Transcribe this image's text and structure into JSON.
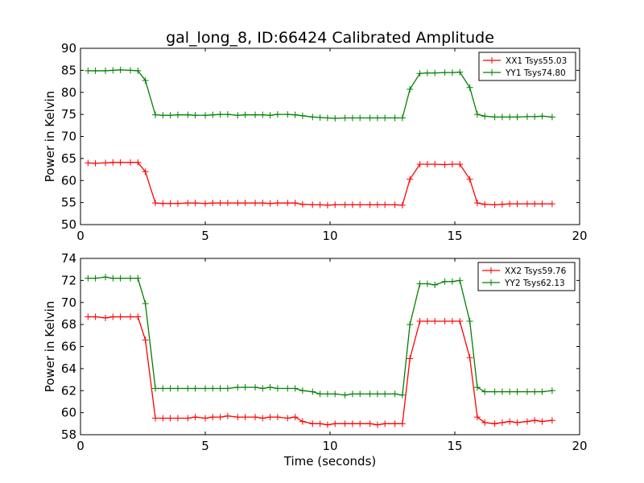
{
  "figure_title": "gal_long_8, ID:66424 Calibrated Amplitude",
  "chart_data": [
    {
      "type": "line",
      "title": "gal_long_8, ID:66424 Calibrated Amplitude",
      "xlabel": "",
      "ylabel": "Power in Kelvin",
      "xlim": [
        0,
        20
      ],
      "ylim": [
        50,
        90
      ],
      "xticks": [
        0,
        5,
        10,
        15,
        20
      ],
      "yticks": [
        50,
        55,
        60,
        65,
        70,
        75,
        80,
        85,
        90
      ],
      "grid": false,
      "legend_position": "top-right",
      "x": [
        0.3,
        0.6,
        1.0,
        1.3,
        1.6,
        2.0,
        2.3,
        2.6,
        3.0,
        3.3,
        3.6,
        3.9,
        4.3,
        4.6,
        5.0,
        5.3,
        5.6,
        5.9,
        6.3,
        6.6,
        7.0,
        7.3,
        7.6,
        7.9,
        8.3,
        8.6,
        8.9,
        9.3,
        9.6,
        9.9,
        10.2,
        10.6,
        10.9,
        11.2,
        11.6,
        11.9,
        12.2,
        12.6,
        12.9,
        13.2,
        13.6,
        13.9,
        14.2,
        14.6,
        14.9,
        15.2,
        15.6,
        15.9,
        16.2,
        16.6,
        16.9,
        17.2,
        17.5,
        17.9,
        18.2,
        18.5,
        18.9
      ],
      "series": [
        {
          "name": "XX1 Tsys55.03",
          "color": "#ff0000",
          "values": [
            64.0,
            63.9,
            64.0,
            64.1,
            64.1,
            64.1,
            64.1,
            62.0,
            54.9,
            54.8,
            54.8,
            54.8,
            54.9,
            54.9,
            54.8,
            54.9,
            54.9,
            54.9,
            54.9,
            54.9,
            54.9,
            54.9,
            54.8,
            54.9,
            54.9,
            54.9,
            54.6,
            54.5,
            54.5,
            54.4,
            54.5,
            54.5,
            54.5,
            54.5,
            54.5,
            54.5,
            54.5,
            54.5,
            54.4,
            60.3,
            63.7,
            63.7,
            63.7,
            63.6,
            63.7,
            63.7,
            60.3,
            54.9,
            54.6,
            54.5,
            54.6,
            54.7,
            54.7,
            54.7,
            54.7,
            54.7,
            54.7
          ]
        },
        {
          "name": "YY1 Tsys74.80",
          "color": "#008000",
          "values": [
            84.9,
            84.9,
            84.9,
            85.0,
            85.1,
            85.0,
            84.9,
            82.7,
            74.9,
            74.8,
            74.8,
            74.9,
            74.9,
            74.8,
            74.8,
            74.9,
            75.0,
            75.0,
            74.8,
            74.9,
            74.9,
            74.9,
            74.8,
            75.0,
            75.0,
            74.9,
            74.7,
            74.4,
            74.3,
            74.2,
            74.1,
            74.2,
            74.2,
            74.2,
            74.2,
            74.2,
            74.2,
            74.2,
            74.2,
            80.7,
            84.3,
            84.4,
            84.4,
            84.5,
            84.5,
            84.6,
            81.1,
            75.0,
            74.6,
            74.4,
            74.4,
            74.4,
            74.4,
            74.5,
            74.5,
            74.6,
            74.4
          ]
        }
      ]
    },
    {
      "type": "line",
      "title": "",
      "xlabel": "Time (seconds)",
      "ylabel": "Power in Kelvin",
      "xlim": [
        0,
        20
      ],
      "ylim": [
        58,
        74
      ],
      "xticks": [
        0,
        5,
        10,
        15,
        20
      ],
      "yticks": [
        58,
        60,
        62,
        64,
        66,
        68,
        70,
        72,
        74
      ],
      "grid": false,
      "legend_position": "top-right",
      "x": [
        0.3,
        0.6,
        1.0,
        1.3,
        1.6,
        2.0,
        2.3,
        2.6,
        3.0,
        3.3,
        3.6,
        3.9,
        4.3,
        4.6,
        5.0,
        5.3,
        5.6,
        5.9,
        6.3,
        6.6,
        7.0,
        7.3,
        7.6,
        7.9,
        8.3,
        8.6,
        8.9,
        9.3,
        9.6,
        9.9,
        10.2,
        10.6,
        10.9,
        11.2,
        11.6,
        11.9,
        12.2,
        12.6,
        12.9,
        13.2,
        13.6,
        13.9,
        14.2,
        14.6,
        14.9,
        15.2,
        15.6,
        15.9,
        16.2,
        16.6,
        16.9,
        17.2,
        17.5,
        17.9,
        18.2,
        18.5,
        18.9
      ],
      "series": [
        {
          "name": "XX2 Tsys59.76",
          "color": "#ff0000",
          "values": [
            68.7,
            68.7,
            68.6,
            68.7,
            68.7,
            68.7,
            68.7,
            66.6,
            59.5,
            59.5,
            59.5,
            59.5,
            59.5,
            59.6,
            59.5,
            59.6,
            59.6,
            59.7,
            59.6,
            59.6,
            59.6,
            59.5,
            59.6,
            59.6,
            59.5,
            59.6,
            59.2,
            59.0,
            59.0,
            58.9,
            59.0,
            59.0,
            59.0,
            59.0,
            59.0,
            58.9,
            59.0,
            59.0,
            59.0,
            64.9,
            68.3,
            68.3,
            68.3,
            68.3,
            68.3,
            68.3,
            65.0,
            59.6,
            59.1,
            59.0,
            59.1,
            59.2,
            59.1,
            59.2,
            59.3,
            59.2,
            59.3
          ]
        },
        {
          "name": "YY2 Tsys62.13",
          "color": "#008000",
          "values": [
            72.2,
            72.2,
            72.3,
            72.2,
            72.2,
            72.2,
            72.2,
            69.9,
            62.2,
            62.2,
            62.2,
            62.2,
            62.2,
            62.2,
            62.2,
            62.2,
            62.2,
            62.2,
            62.3,
            62.3,
            62.3,
            62.2,
            62.3,
            62.2,
            62.2,
            62.2,
            62.0,
            61.9,
            61.7,
            61.7,
            61.7,
            61.6,
            61.7,
            61.7,
            61.7,
            61.7,
            61.7,
            61.7,
            61.6,
            68.0,
            71.7,
            71.7,
            71.6,
            71.9,
            71.9,
            72.0,
            68.3,
            62.3,
            61.9,
            61.9,
            61.9,
            61.9,
            61.9,
            61.9,
            61.9,
            61.9,
            62.0
          ]
        }
      ]
    }
  ]
}
